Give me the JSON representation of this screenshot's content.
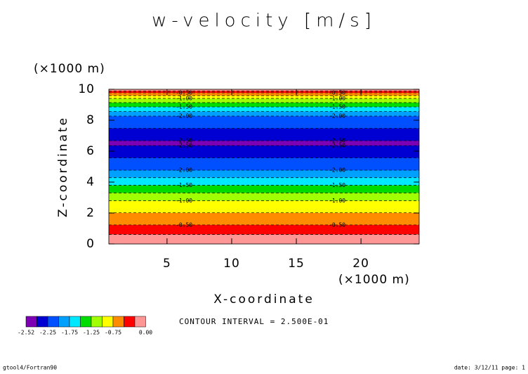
{
  "chart_data": {
    "type": "contour",
    "title": "w-velocity [m/s]",
    "x_label": "X-coordinate",
    "y_label": "Z-coordinate",
    "x_unit": "(×1000 m)",
    "y_unit": "(×1000 m)",
    "xlim": [
      0.5,
      24.5
    ],
    "xticks": [
      5,
      10,
      15,
      20
    ],
    "ylim": [
      0,
      10
    ],
    "yticks": [
      0,
      2,
      4,
      6,
      8,
      10
    ],
    "z": [
      0,
      1.23,
      2.8,
      3.8,
      4.77,
      6.36,
      6.5,
      6.68,
      8.27,
      8.86,
      9.41,
      9.77,
      10
    ],
    "values": [
      0,
      -0.5,
      -1.0,
      -1.5,
      -2.0,
      -2.5,
      -2.52,
      -2.5,
      -2.0,
      -1.5,
      -1.0,
      -0.5,
      0
    ],
    "levels": [
      -2.52,
      -2.5,
      -2.25,
      -2.0,
      -1.75,
      -1.5,
      -1.25,
      -1.0,
      -0.75,
      -0.5,
      -0.25,
      0
    ],
    "colors": [
      "#7d00b4",
      "#0000d2",
      "#0050ff",
      "#00a0ff",
      "#00e8ff",
      "#00dc00",
      "#a0ff00",
      "#ffff00",
      "#ff8c00",
      "#ff0000",
      "#ff9696"
    ],
    "colorbar_ticks": [
      -2.52,
      -2.25,
      -1.75,
      -1.25,
      -0.75,
      {
        "value": 0,
        "label": "0.00"
      }
    ],
    "contour_labels": [
      {
        "value": -0.5,
        "label": "-0.50"
      },
      {
        "value": -1.0,
        "label": "-1.00"
      },
      {
        "value": -1.5,
        "label": "-1.50"
      },
      {
        "value": -2.0,
        "label": "-2.00"
      },
      {
        "value": -2.5,
        "label": "-2.50"
      }
    ],
    "contour_interval": "CONTOUR INTERVAL = 2.500E-01",
    "footer_left": "gtool4/Fortran90",
    "footer_right": "date: 3/12/11 page: 1"
  }
}
